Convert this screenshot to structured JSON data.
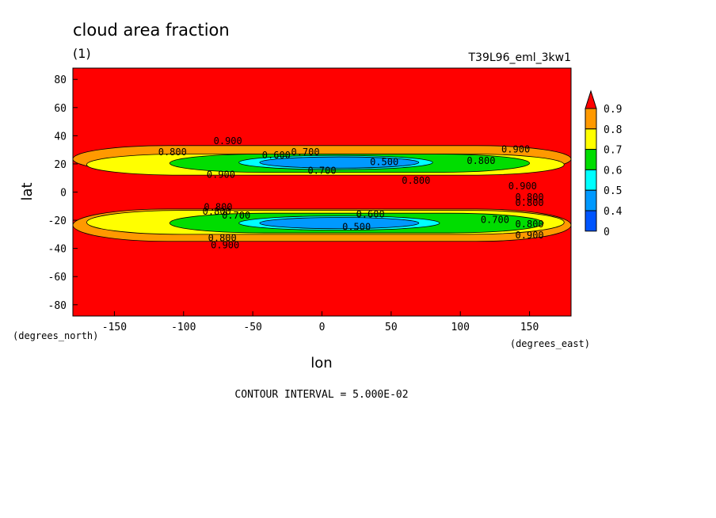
{
  "chart_data": {
    "type": "heatmap",
    "title": "cloud area fraction",
    "subtitle": "(1)",
    "dataset_label": "T39L96_eml_3kw1",
    "xlabel": "lon",
    "ylabel": "lat",
    "x_units": "(degrees_east)",
    "y_units": "(degrees_north)",
    "xlim": [
      -180,
      180
    ],
    "ylim": [
      -88,
      88
    ],
    "x_ticks": [
      "-150",
      "-100",
      "-50",
      "0",
      "50",
      "100",
      "150"
    ],
    "y_ticks": [
      "80",
      "60",
      "40",
      "20",
      "0",
      "-20",
      "-40",
      "-60",
      "-80"
    ],
    "footer": "CONTOUR INTERVAL = 5.000E-02",
    "contour_interval": 0.05,
    "colorbar": {
      "levels": [
        "0.9",
        "0.8",
        "0.7",
        "0.6",
        "0.5",
        "0.4",
        "0"
      ],
      "colors": [
        "#ff0000",
        "#ff9900",
        "#ffff00",
        "#00dd00",
        "#00ffff",
        "#0099ff",
        "#0055ff"
      ]
    },
    "bands": [
      {
        "level": 0.8,
        "color": "#ff9900",
        "lat": [
          14,
          33
        ],
        "lon": [
          -180,
          180
        ]
      },
      {
        "level": 0.7,
        "color": "#ffff00",
        "lat": [
          12,
          27
        ],
        "lon": [
          -170,
          175
        ]
      },
      {
        "level": 0.6,
        "color": "#00dd00",
        "lat": [
          14,
          27
        ],
        "lon": [
          -110,
          150
        ]
      },
      {
        "level": 0.5,
        "color": "#00ffff",
        "lat": [
          16,
          26
        ],
        "lon": [
          -60,
          80
        ]
      },
      {
        "level": 0.4,
        "color": "#0099ff",
        "lat": [
          17,
          25
        ],
        "lon": [
          -45,
          70
        ]
      },
      {
        "level": 0.8,
        "color": "#ff9900",
        "lat": [
          -35,
          -12
        ],
        "lon": [
          -180,
          180
        ]
      },
      {
        "level": 0.7,
        "color": "#ffff00",
        "lat": [
          -30,
          -13
        ],
        "lon": [
          -170,
          175
        ]
      },
      {
        "level": 0.6,
        "color": "#00dd00",
        "lat": [
          -29,
          -15
        ],
        "lon": [
          -110,
          160
        ]
      },
      {
        "level": 0.5,
        "color": "#00ffff",
        "lat": [
          -27,
          -17
        ],
        "lon": [
          -60,
          85
        ]
      },
      {
        "level": 0.4,
        "color": "#0099ff",
        "lat": [
          -26,
          -18
        ],
        "lon": [
          -45,
          70
        ]
      }
    ],
    "contour_labels": [
      {
        "text": "0.900",
        "lon": -68,
        "lat": 36
      },
      {
        "text": "0.800",
        "lon": -108,
        "lat": 28
      },
      {
        "text": "0.700",
        "lon": -12,
        "lat": 28
      },
      {
        "text": "0.600",
        "lon": -33,
        "lat": 26
      },
      {
        "text": "0.500",
        "lon": 45,
        "lat": 21
      },
      {
        "text": "0.700",
        "lon": 0,
        "lat": 15
      },
      {
        "text": "0.900",
        "lon": -73,
        "lat": 12
      },
      {
        "text": "0.800",
        "lon": 68,
        "lat": 8
      },
      {
        "text": "0.800",
        "lon": 115,
        "lat": 22
      },
      {
        "text": "0.900",
        "lon": 140,
        "lat": 30
      },
      {
        "text": "0.900",
        "lon": 145,
        "lat": 4
      },
      {
        "text": "0.800",
        "lon": 150,
        "lat": -4
      },
      {
        "text": "0.800",
        "lon": 150,
        "lat": -8
      },
      {
        "text": "0.800",
        "lon": -75,
        "lat": -11
      },
      {
        "text": "0.800",
        "lon": -76,
        "lat": -14
      },
      {
        "text": "0.700",
        "lon": -62,
        "lat": -17
      },
      {
        "text": "0.600",
        "lon": 35,
        "lat": -16
      },
      {
        "text": "0.500",
        "lon": 25,
        "lat": -25
      },
      {
        "text": "0.700",
        "lon": 125,
        "lat": -20
      },
      {
        "text": "0.800",
        "lon": 150,
        "lat": -23
      },
      {
        "text": "0.900",
        "lon": 150,
        "lat": -31
      },
      {
        "text": "0.800",
        "lon": -72,
        "lat": -33
      },
      {
        "text": "0.900",
        "lon": -70,
        "lat": -38
      }
    ]
  }
}
